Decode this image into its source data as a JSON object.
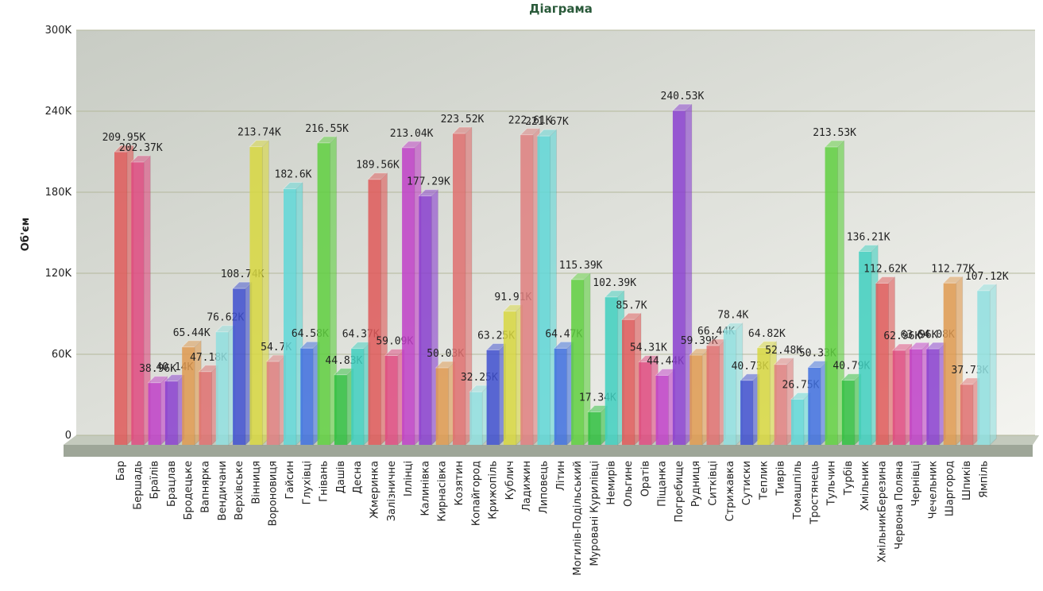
{
  "chart_data": {
    "type": "bar3d",
    "title": "Діаграма",
    "y_label": "Об'єм",
    "categories": [
      "Бар",
      "Бершадь",
      "Браїлів",
      "Брацлав",
      "Бродецьке",
      "Вапнярка",
      "Вендичани",
      "Верхівське",
      "Вінниця",
      "Вороновиця",
      "Гайсин",
      "Глухівці",
      "Гнівань",
      "Дашів",
      "Десна",
      "Жмеринка",
      "Залізничне",
      "Іллінці",
      "Калинівка",
      "Кирнасівка",
      "Козятин",
      "Копайгород",
      "Крижопіль",
      "Кублич",
      "Ладижин",
      "Липовець",
      "Літин",
      "Могилів-Подільський",
      "Муровані Курилівці",
      "Немирів",
      "Ольгине",
      "Оратів",
      "Піщанка",
      "Погребище",
      "Рудниця",
      "Ситківці",
      "Стрижавка",
      "Сутиски",
      "Теплик",
      "Тиврів",
      "Томашпіль",
      "Тростянець",
      "Тульчин",
      "Турбів",
      "Хмільник",
      "ХмільникБерезина",
      "Червона Поляна",
      "Чернівці",
      "Чечельник",
      "Шаргород",
      "Шпиків",
      "Ямпіль"
    ],
    "values": [
      209.95,
      202.37,
      38.96,
      40.14,
      65.44,
      47.18,
      76.62,
      108.74,
      213.74,
      54.7,
      182.6,
      64.58,
      216.55,
      44.83,
      64.37,
      189.56,
      59.09,
      213.04,
      177.29,
      50.03,
      223.52,
      32.25,
      63.25,
      91.91,
      222.61,
      221.67,
      64.47,
      115.39,
      17.34,
      102.39,
      85.7,
      54.31,
      44.44,
      240.53,
      59.39,
      66.44,
      78.4,
      40.73,
      64.82,
      52.48,
      26.75,
      50.33,
      213.53,
      40.79,
      136.21,
      112.62,
      62.96,
      63.96,
      64.08,
      112.77,
      37.73,
      107.12
    ],
    "value_labels": [
      "209.95K",
      "202.37K",
      "38.96K",
      "40.14K",
      "65.44K",
      "47.18K",
      "76.62K",
      "108.74K",
      "213.74K",
      "54.7K",
      "182.6K",
      "64.58K",
      "216.55K",
      "44.83K",
      "64.37K",
      "189.56K",
      "59.09K",
      "213.04K",
      "177.29K",
      "50.03K",
      "223.52K",
      "32.25K",
      "63.25K",
      "91.91K",
      "222.61K",
      "221.67K",
      "64.47K",
      "115.39K",
      "17.34K",
      "102.39K",
      "85.7K",
      "54.31K",
      "44.44K",
      "240.53K",
      "59.39K",
      "66.44K",
      "78.4K",
      "40.73K",
      "64.82K",
      "52.48K",
      "26.75K",
      "50.33K",
      "213.53K",
      "40.79K",
      "136.21K",
      "112.62K",
      "62.96K",
      "63.96K",
      "64.08K",
      "112.77K",
      "37.73K",
      "107.12K"
    ],
    "palette": [
      "#e05a5a",
      "#e04a80",
      "#c040c8",
      "#8a40d0",
      "#e09a50",
      "#e07070",
      "#90e0e0",
      "#4050d0",
      "#d8d840",
      "#e08080",
      "#60d8d8",
      "#4070e0",
      "#60d040",
      "#30c040",
      "#40d0c0"
    ],
    "ylim": [
      0,
      300
    ],
    "yticks": [
      {
        "value": 0,
        "label": "0"
      },
      {
        "value": 60,
        "label": "60K"
      },
      {
        "value": 120,
        "label": "120K"
      },
      {
        "value": 180,
        "label": "180K"
      },
      {
        "value": 240,
        "label": "240K"
      },
      {
        "value": 300,
        "label": "300K"
      }
    ],
    "grid": true
  }
}
